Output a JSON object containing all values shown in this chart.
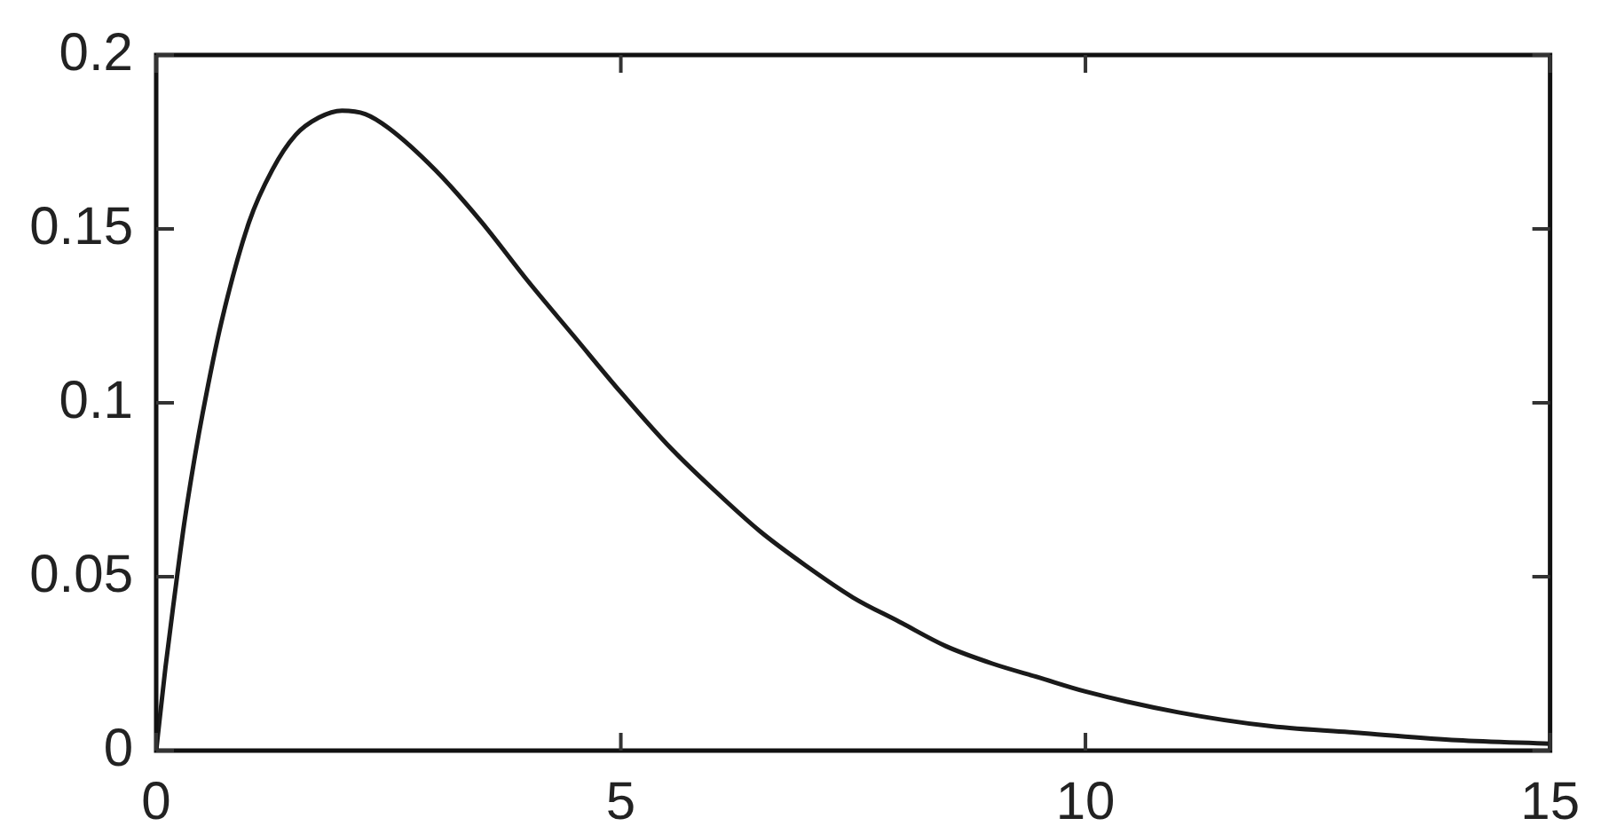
{
  "chart_data": {
    "type": "line",
    "x": [
      0,
      0.1,
      0.2,
      0.3,
      0.4,
      0.5,
      0.7,
      1,
      1.25,
      1.5,
      1.75,
      2,
      2.25,
      2.5,
      3,
      3.5,
      4,
      4.5,
      5,
      5.5,
      6,
      6.5,
      7,
      7.5,
      8,
      8.5,
      9,
      9.5,
      10,
      11,
      12,
      13,
      14,
      15
    ],
    "values": [
      0,
      0.024,
      0.045,
      0.065,
      0.082,
      0.097,
      0.123,
      0.152,
      0.167,
      0.177,
      0.182,
      0.184,
      0.183,
      0.179,
      0.167,
      0.152,
      0.135,
      0.119,
      0.103,
      0.088,
      0.075,
      0.063,
      0.053,
      0.044,
      0.037,
      0.03,
      0.025,
      0.021,
      0.017,
      0.011,
      0.007,
      0.005,
      0.003,
      0.002
    ],
    "color": "#1a1a1a",
    "xlim": [
      0,
      15
    ],
    "ylim": [
      0,
      0.2
    ],
    "xticks": [
      0,
      5,
      10,
      15
    ],
    "yticks": [
      0,
      0.05,
      0.1,
      0.15,
      0.2
    ],
    "grid": false,
    "marker": "none",
    "line_style": "solid"
  }
}
